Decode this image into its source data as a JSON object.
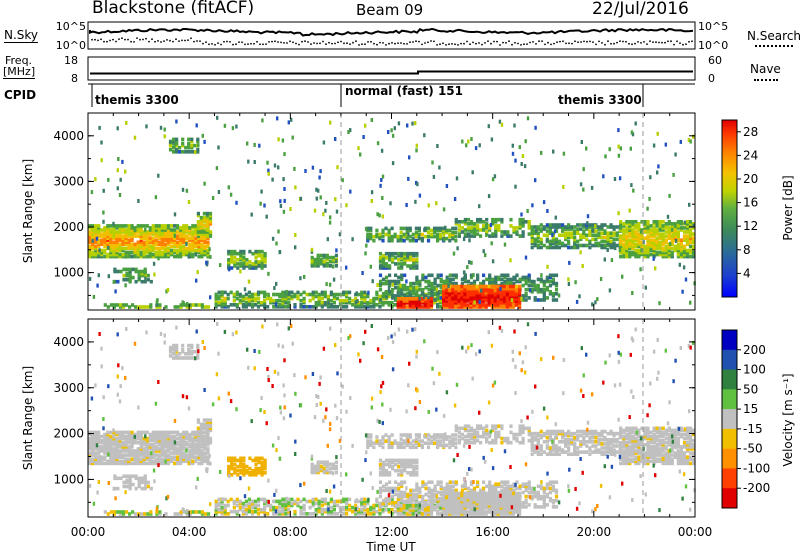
{
  "header": {
    "radar": "Blackstone (fitACF)",
    "beam": "Beam 09",
    "date": "22/Jul/2016"
  },
  "nsky_panel": {
    "left_label": "N.Sky",
    "right_label": "N.Search",
    "ticks_left": [
      "10^5",
      "10^0"
    ],
    "ticks_right": [
      "10^5",
      "10^0"
    ]
  },
  "freq_panel": {
    "left_label_1": "Freq.",
    "left_label_2": "[MHz]",
    "ticks_left": [
      "18",
      "8"
    ],
    "ticks_right": [
      "60",
      "0"
    ],
    "right_label": "Nave"
  },
  "cpid_panel": {
    "label": "CPID",
    "segments": [
      {
        "name": "themis 3300",
        "start_hour": 0,
        "end_hour": 10
      },
      {
        "name": "normal (fast) 151",
        "start_hour": 10,
        "end_hour": 22
      },
      {
        "name": "themis 3300",
        "start_hour": 22,
        "end_hour": 24
      }
    ]
  },
  "time_axis": {
    "label": "Time UT",
    "ticks": [
      "00:00",
      "04:00",
      "08:00",
      "12:00",
      "16:00",
      "20:00",
      "00:00"
    ]
  },
  "chart_data": [
    {
      "type": "heatmap",
      "title": "",
      "xlabel": "Time UT",
      "ylabel": "Slant Range [km]",
      "xlim_hours": [
        0,
        24
      ],
      "ylim_km": [
        180,
        4500
      ],
      "yticks": [
        "1000",
        "2000",
        "3000",
        "4000"
      ],
      "colorbar": {
        "label": "Power [dB]",
        "ticks": [
          "28",
          "24",
          "20",
          "16",
          "12",
          "8",
          "4"
        ],
        "range": [
          0,
          30
        ],
        "colors": [
          "#0000ff",
          "#2050c0",
          "#3a7a6a",
          "#4aa040",
          "#b8d000",
          "#f0c000",
          "#ff8000",
          "#ff3000",
          "#e00000"
        ]
      },
      "features": [
        {
          "name": "main-echo-band",
          "t_start": 0.0,
          "t_end": 4.8,
          "range_km": [
            1300,
            2000
          ],
          "level": "high"
        },
        {
          "name": "late-band",
          "t_start": 18.0,
          "t_end": 24.0,
          "range_km": [
            1300,
            2100
          ],
          "level": "medium"
        },
        {
          "name": "ground-scatter-enhancement",
          "t_start": 14.0,
          "t_end": 17.0,
          "range_km": [
            200,
            700
          ],
          "level": "very-high"
        }
      ]
    },
    {
      "type": "heatmap",
      "title": "",
      "xlabel": "Time UT",
      "ylabel": "Slant Range [km]",
      "xlim_hours": [
        0,
        24
      ],
      "ylim_km": [
        180,
        4500
      ],
      "yticks": [
        "1000",
        "2000",
        "3000",
        "4000"
      ],
      "colorbar": {
        "label": "Velocity [m s⁻¹]",
        "ticks": [
          "200",
          "100",
          "50",
          "15",
          "-15",
          "-50",
          "-100",
          "-200"
        ],
        "range": [
          -250,
          250
        ],
        "colors": [
          "#e00000",
          "#ff4000",
          "#ff9000",
          "#f0c000",
          "#c0c0c0",
          "#60c040",
          "#308040",
          "#2050b0",
          "#0000c0"
        ]
      },
      "features": [
        {
          "name": "ground-scatter-grey",
          "t_start": 0.0,
          "t_end": 24.0,
          "range_km": [
            1300,
            2000
          ],
          "level": "low-velocity"
        },
        {
          "name": "positive-flow-patch",
          "t_start": 5.2,
          "t_end": 6.8,
          "range_km": [
            1000,
            1400
          ],
          "level": "negative"
        }
      ]
    }
  ]
}
